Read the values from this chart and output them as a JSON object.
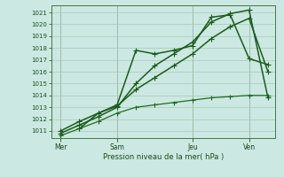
{
  "title": "Pression niveau de la mer( hPa )",
  "ylim": [
    1010.4,
    1021.6
  ],
  "background_color": "#cce8e2",
  "grid_color": "#a8c8b8",
  "xtick_labels": [
    "Mer",
    "Sam",
    "Jeu",
    "Ven"
  ],
  "xtick_positions": [
    0,
    3,
    7,
    10
  ],
  "yticks": [
    1011,
    1012,
    1013,
    1014,
    1015,
    1016,
    1017,
    1018,
    1019,
    1020,
    1021
  ],
  "series": [
    {
      "x": [
        0,
        1,
        2,
        3,
        4,
        5,
        6,
        7,
        8,
        9,
        10,
        11
      ],
      "y": [
        1010.6,
        1011.2,
        1011.8,
        1012.5,
        1013.0,
        1013.2,
        1013.4,
        1013.6,
        1013.8,
        1013.9,
        1014.0,
        1014.0
      ],
      "color": "#1e6b1e",
      "lw": 0.9,
      "ms": 1.8
    },
    {
      "x": [
        0,
        1,
        2,
        3,
        4,
        5,
        6,
        7,
        8,
        9,
        10,
        11
      ],
      "y": [
        1011.0,
        1011.8,
        1012.5,
        1013.1,
        1014.5,
        1015.5,
        1016.5,
        1017.5,
        1018.8,
        1019.8,
        1020.5,
        1016.0
      ],
      "color": "#1a5c1a",
      "lw": 1.1,
      "ms": 2.2
    },
    {
      "x": [
        0,
        1,
        2,
        3,
        4,
        5,
        6,
        7,
        8,
        9,
        10,
        11
      ],
      "y": [
        1010.8,
        1011.5,
        1012.2,
        1013.0,
        1015.0,
        1016.5,
        1017.5,
        1018.5,
        1020.2,
        1020.9,
        1021.2,
        1013.8
      ],
      "color": "#1a5c1a",
      "lw": 1.1,
      "ms": 2.2
    },
    {
      "x": [
        1,
        2,
        3,
        4,
        5,
        6,
        7,
        8,
        9,
        10,
        11
      ],
      "y": [
        1011.2,
        1012.5,
        1013.2,
        1017.8,
        1017.5,
        1017.8,
        1018.2,
        1020.6,
        1020.8,
        1017.1,
        1016.6
      ],
      "color": "#1a5c1a",
      "lw": 1.1,
      "ms": 2.2
    }
  ]
}
